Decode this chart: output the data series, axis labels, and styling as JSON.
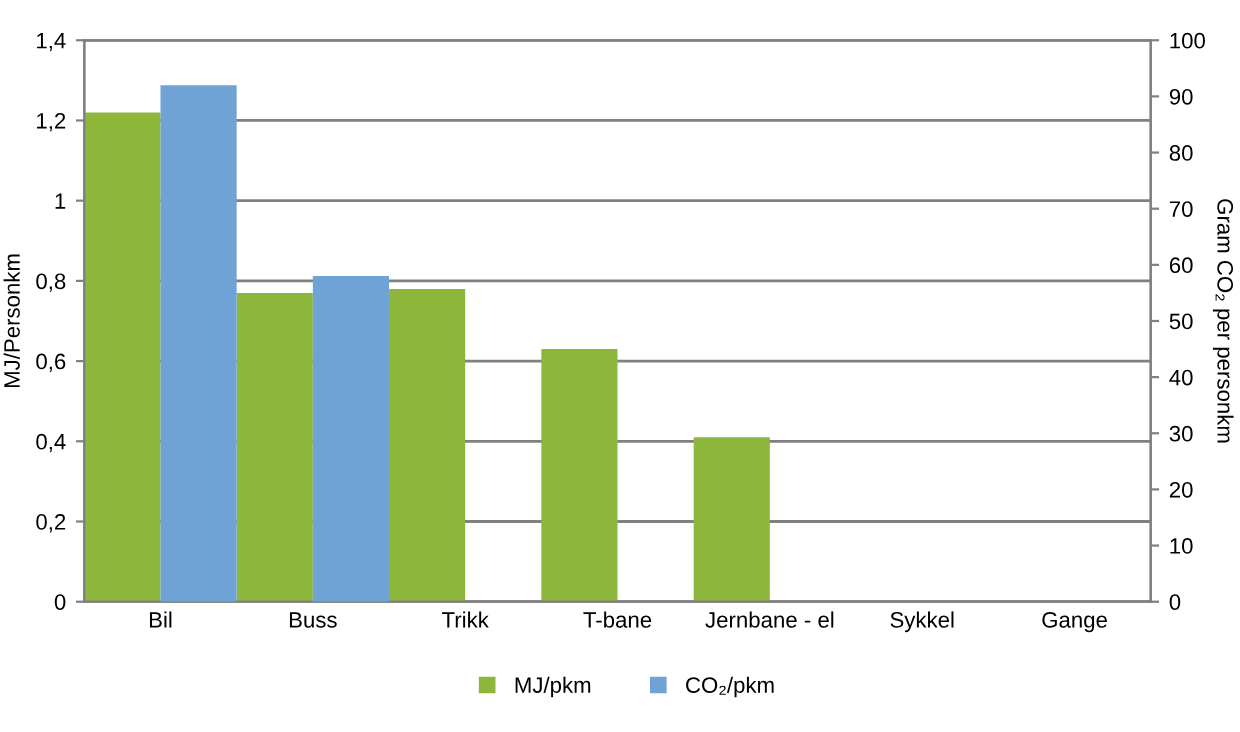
{
  "chart_data": {
    "type": "bar",
    "categories": [
      "Bil",
      "Buss",
      "Trikk",
      "T-bane",
      "Jernbane - el",
      "Sykkel",
      "Gange"
    ],
    "series": [
      {
        "name": "MJ/pkm",
        "color": "#8db73b",
        "values": [
          1.22,
          0.77,
          0.78,
          0.63,
          0.41,
          0,
          0
        ]
      },
      {
        "name": "CO₂/pkm",
        "color": "#6fa3d6",
        "axis": "y2",
        "values": [
          92,
          58,
          null,
          null,
          null,
          null,
          null
        ]
      }
    ],
    "ylabel": "MJ/Personkm",
    "y2label": "Gram CO₂ per personkm",
    "ylim": [
      0,
      1.4
    ],
    "yticks": [
      0,
      {
        "value": 0.2,
        "label": "0,2"
      },
      {
        "value": 0.4,
        "label": "0,4"
      },
      {
        "value": 0.6,
        "label": "0,6"
      },
      {
        "value": 0.8,
        "label": "0,8"
      },
      1,
      {
        "value": 1.2,
        "label": "1,2"
      },
      {
        "value": 1.4,
        "label": "1,4"
      }
    ],
    "y2lim": [
      0,
      100
    ],
    "y2ticks": [
      0,
      10,
      20,
      30,
      40,
      50,
      60,
      70,
      80,
      90,
      100
    ],
    "grid": "y",
    "legend": "bottom"
  }
}
